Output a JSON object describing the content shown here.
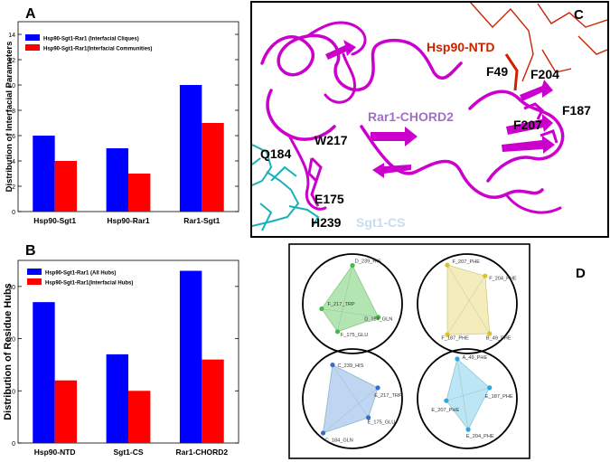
{
  "chart_data": [
    {
      "panel": "A",
      "type": "bar",
      "categories": [
        "Hsp90-Sgt1",
        "Hsp90-Rar1",
        "Rar1-Sgt1"
      ],
      "series": [
        {
          "name": "Hsp90-Sgt1-Rar1 (Interfacial Cliques)",
          "color": "#0000ff",
          "values": [
            6,
            5,
            10
          ]
        },
        {
          "name": "Hsp90-Sgt1-Rar1(Interfacial  Communities)",
          "color": "#ff0000",
          "values": [
            4,
            3,
            7
          ]
        }
      ],
      "ylabel": "Distribution of  Interfacial Parameters",
      "ylim": [
        0,
        15
      ],
      "yticks": [
        0,
        2,
        4,
        6,
        8,
        10,
        12,
        14
      ],
      "legend": "top-left",
      "grid": false
    },
    {
      "panel": "B",
      "type": "bar",
      "categories": [
        "Hsp90-NTD",
        "Sgt1-CS",
        "Rar1-CHORD2"
      ],
      "series": [
        {
          "name": "Hsp90-Sgt1-Rar1 (All Hubs)",
          "color": "#0000ff",
          "values": [
            27,
            17,
            33
          ]
        },
        {
          "name": "Hsp90-Sgt1-Rar1(Interfacial Hubs)",
          "color": "#ff0000",
          "values": [
            12,
            10,
            16
          ]
        }
      ],
      "ylabel": "Distribution of  Residue Hubs",
      "ylim": [
        0,
        35
      ],
      "yticks": [
        0,
        10,
        20,
        30
      ],
      "legend": "top-left",
      "grid": false
    }
  ],
  "structure": {
    "panel": "C",
    "labels": {
      "hsp90": "Hsp90-NTD",
      "rar1": "Rar1-CHORD2",
      "sgt1": "Sgt1-CS",
      "f49": "F49",
      "f204": "F204",
      "f187": "F187",
      "f207": "F207",
      "w217": "W217",
      "q184": "Q184",
      "e175": "E175",
      "h239": "H239"
    },
    "colors": {
      "hsp90": "#cc2200",
      "rar1": "#cc00cc",
      "rar1_label": "#a070c8",
      "sgt1": "#1ab0b8",
      "sgt1_label": "#c8dcee"
    }
  },
  "cliques": {
    "panel": "D",
    "items": [
      {
        "color": "#9adc9a",
        "dot": "#44bb44",
        "nodes": [
          "D_239_HIS",
          "F_217_TRP",
          "D_184_GLN",
          "F_175_GLU"
        ]
      },
      {
        "color": "#f2e6a6",
        "dot": "#e0c020",
        "nodes": [
          "F_207_PHE",
          "F_204_PHE",
          "F_187_PHE",
          "B_49_PHE"
        ]
      },
      {
        "color": "#a8c8ec",
        "dot": "#2f6fd0",
        "nodes": [
          "C_239_HIS",
          "E_217_TRP",
          "E_175_GLU",
          "C_184_GLN"
        ]
      },
      {
        "color": "#a6dcf2",
        "dot": "#2aa8e0",
        "nodes": [
          "A_49_PHE",
          "E_187_PHE",
          "E_207_PHE",
          "E_204_PHE"
        ]
      }
    ]
  }
}
